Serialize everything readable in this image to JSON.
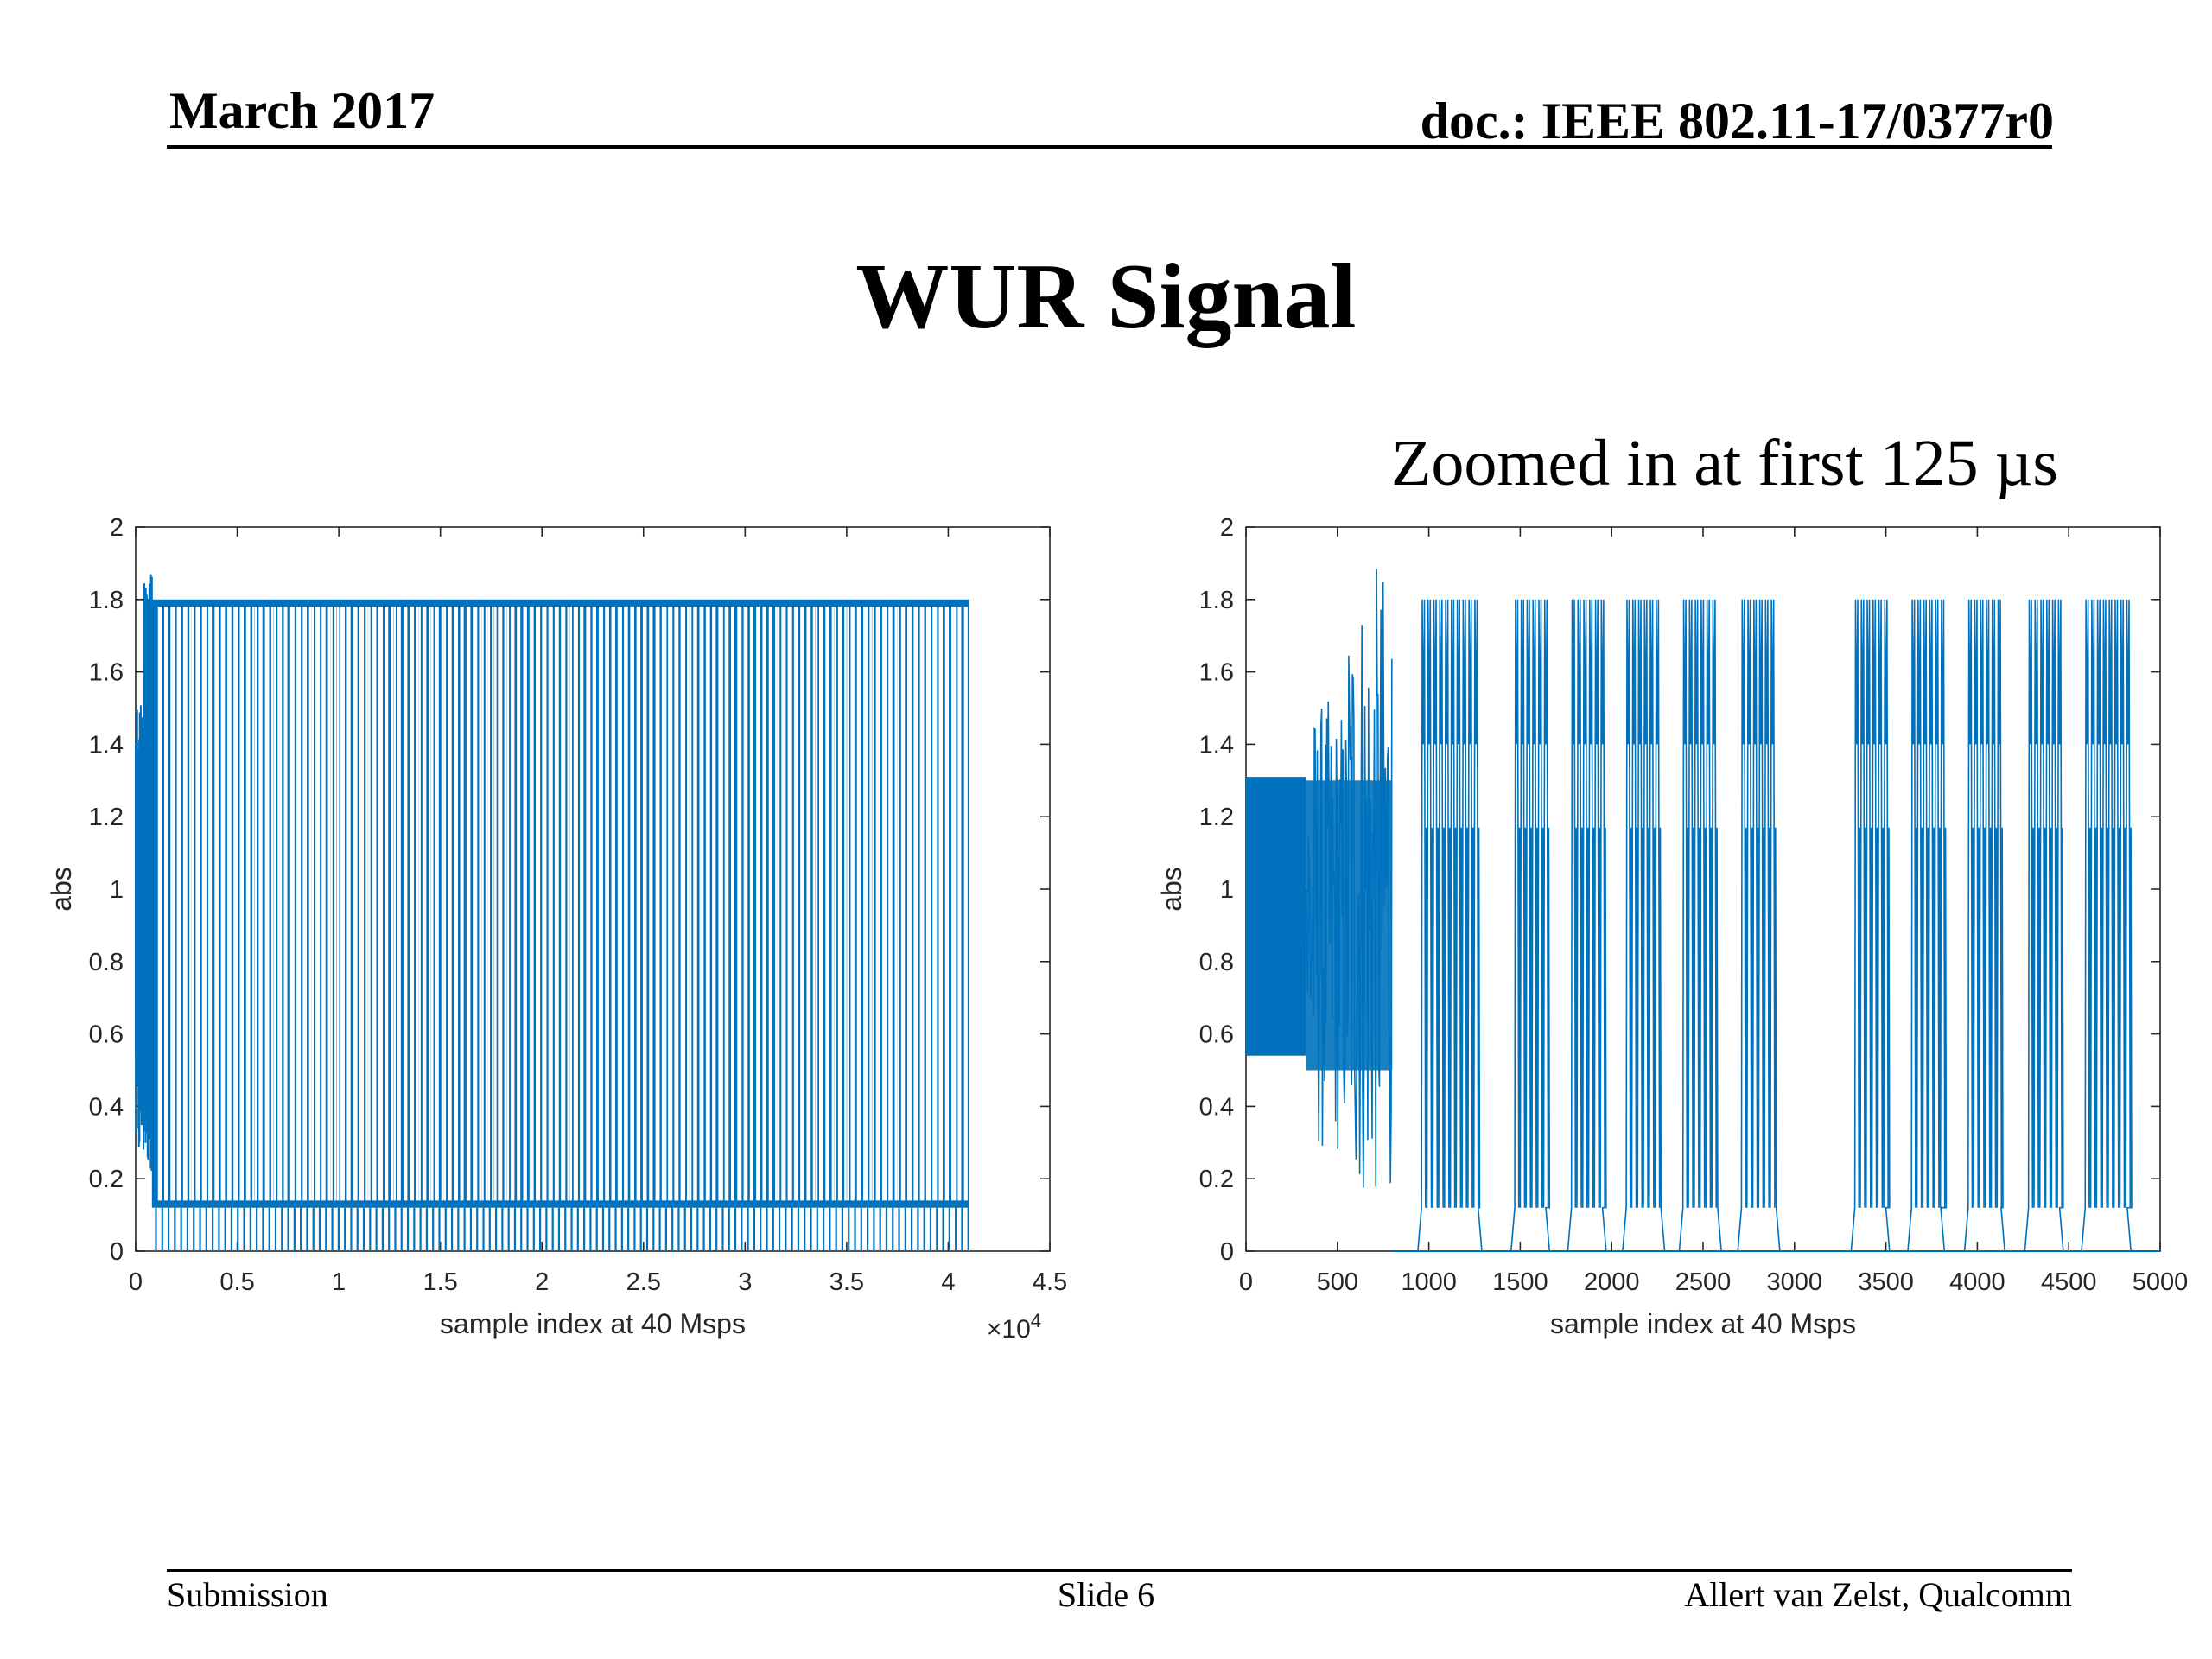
{
  "header": {
    "date": "March 2017",
    "doc": "doc.: IEEE 802.11-17/0377r0"
  },
  "slide": {
    "title": "WUR Signal",
    "subtitle": "Zoomed in at first 125 µs"
  },
  "footer": {
    "left": "Submission",
    "center": "Slide 6",
    "right": "Allert van Zelst, Qualcomm"
  },
  "colors": {
    "series": "#0072BD",
    "axis": "#262626"
  },
  "chart_data": [
    {
      "type": "line",
      "xlabel": "sample index at 40 Msps",
      "ylabel": "abs",
      "xlim": [
        0,
        45000
      ],
      "ylim": [
        0,
        2
      ],
      "x_ticks": [
        0,
        5000,
        10000,
        15000,
        20000,
        25000,
        30000,
        35000,
        40000,
        45000
      ],
      "x_tick_labels": [
        "0",
        "0.5",
        "1",
        "1.5",
        "2",
        "2.5",
        "3",
        "3.5",
        "4",
        "4.5"
      ],
      "x_exponent_label": "×10",
      "x_exponent_power": "4",
      "y_ticks": [
        0,
        0.2,
        0.4,
        0.6,
        0.8,
        1,
        1.2,
        1.4,
        1.6,
        1.8,
        2
      ],
      "y_tick_labels": [
        "0",
        "0.2",
        "0.4",
        "0.6",
        "0.8",
        "1",
        "1.2",
        "1.4",
        "1.6",
        "1.8",
        "2"
      ],
      "grid": false,
      "signal": {
        "preamble_end": 800,
        "preamble_peak": 1.92,
        "signal_end": 41000,
        "on_level": 1.8,
        "off_level": 0.12,
        "floor": 0
      }
    },
    {
      "type": "line",
      "xlabel": "sample index at 40 Msps",
      "ylabel": "abs",
      "xlim": [
        0,
        5000
      ],
      "ylim": [
        0,
        2
      ],
      "x_ticks": [
        0,
        500,
        1000,
        1500,
        2000,
        2500,
        3000,
        3500,
        4000,
        4500,
        5000
      ],
      "x_tick_labels": [
        "0",
        "500",
        "1000",
        "1500",
        "2000",
        "2500",
        "3000",
        "3500",
        "4000",
        "4500",
        "5000"
      ],
      "y_ticks": [
        0,
        0.2,
        0.4,
        0.6,
        0.8,
        1,
        1.2,
        1.4,
        1.6,
        1.8,
        2
      ],
      "y_tick_labels": [
        "0",
        "0.2",
        "0.4",
        "0.6",
        "0.8",
        "1",
        "1.2",
        "1.4",
        "1.6",
        "1.8",
        "2"
      ],
      "grid": false,
      "signal": {
        "preamble": [
          {
            "x0": 0,
            "x1": 330,
            "low": 0.54,
            "high": 1.31
          },
          {
            "x0": 330,
            "x1": 800,
            "low": 0.08,
            "high": 1.92
          }
        ],
        "bursts": [
          {
            "x0": 960,
            "x1": 1270
          },
          {
            "x0": 1470,
            "x1": 1640
          },
          {
            "x0": 1780,
            "x1": 1950
          },
          {
            "x0": 2080,
            "x1": 2270
          },
          {
            "x0": 2390,
            "x1": 2580
          },
          {
            "x0": 2710,
            "x1": 2900
          },
          {
            "x0": 3330,
            "x1": 3500
          },
          {
            "x0": 3640,
            "x1": 3800
          },
          {
            "x0": 3950,
            "x1": 4130
          },
          {
            "x0": 4280,
            "x1": 4450
          },
          {
            "x0": 4590,
            "x1": 4820
          }
        ],
        "on_level": 1.8,
        "mid_level": 1.4,
        "off_level": 0.12,
        "floor": 0
      }
    }
  ]
}
